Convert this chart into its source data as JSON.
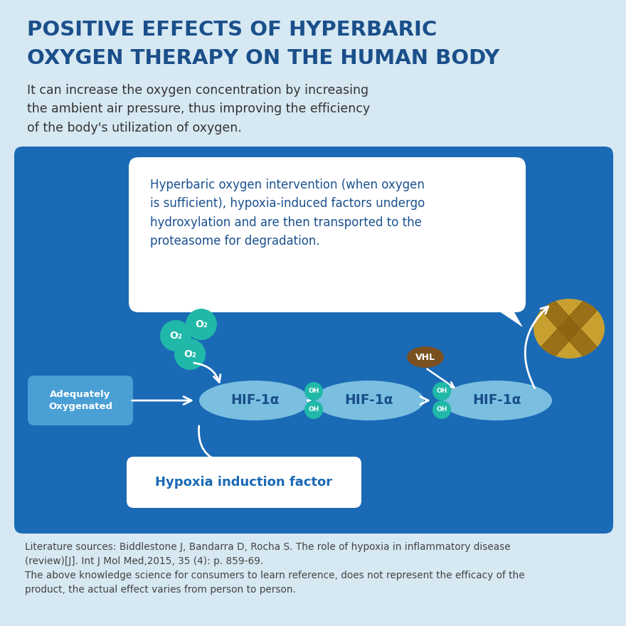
{
  "bg_color": "#d6e8f2",
  "title_line1": "POSITIVE EFFECTS OF HYPERBARIC",
  "title_line2": "OXYGEN THERAPY ON THE HUMAN BODY",
  "title_color": "#1a4f8a",
  "subtitle": "It can increase the oxygen concentration by increasing\nthe ambient air pressure, thus improving the efficiency\nof the body's utilization of oxygen.",
  "subtitle_color": "#333333",
  "panel_bg": "#1a6ab5",
  "bubble_text": "Hyperbaric oxygen intervention (when oxygen\nis sufficient), hypoxia-induced factors undergo\nhydroxylation and are then transported to the\nproteasome for degradation.",
  "bubble_text_color": "#1a5090",
  "hif_color": "#7abfe0",
  "hif_text_color": "#1a4f8a",
  "o2_color": "#20b8a8",
  "o2_text_color": "#ffffff",
  "oh_color": "#20b8a8",
  "oh_text_color": "#ffffff",
  "vhl_color": "#7a5020",
  "vhl_text_color": "#ffffff",
  "adequately_bg": "#4a9fd5",
  "adequately_text_color": "#ffffff",
  "hypoxia_text_color": "#1a6ab5",
  "proteasome_color": "#c8a030",
  "proteasome_line_color": "#8b6010",
  "arrow_color": "#ffffff",
  "lit_text_line1": "Literature sources: Biddlestone J, Bandarra D, Rocha S. The role of hypoxia in inflammatory disease",
  "lit_text_line2": "(review)[J]. Int J Mol Med,2015, 35 (4): p. 859-69.",
  "lit_text_line3": "The above knowledge science for consumers to learn reference, does not represent the efficacy of the",
  "lit_text_line4": "product, the actual effect varies from person to person.",
  "lit_color": "#444444"
}
